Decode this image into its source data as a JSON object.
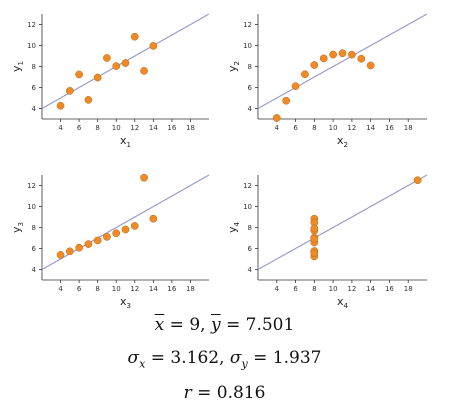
{
  "colors": {
    "point": "#f08a24",
    "point_stroke": "#b8651a",
    "line": "#9a9ccc",
    "axis": "#333333"
  },
  "chart_data": [
    {
      "type": "scatter",
      "ylabel": "y1",
      "ylabel_base": "y",
      "ylabel_sub": "1",
      "xlabel": "x1",
      "xlabel_base": "x",
      "xlabel_sub": "1",
      "xlim": [
        2,
        20
      ],
      "ylim": [
        3,
        13
      ],
      "xticks": [
        4,
        6,
        8,
        10,
        12,
        14,
        16,
        18
      ],
      "yticks": [
        4,
        6,
        8,
        10,
        12
      ],
      "fit_line": {
        "intercept": 3.0,
        "slope": 0.5
      },
      "x": [
        10,
        8,
        13,
        9,
        11,
        14,
        6,
        4,
        12,
        7,
        5
      ],
      "y": [
        8.04,
        6.95,
        7.58,
        8.81,
        8.33,
        9.96,
        7.24,
        4.26,
        10.84,
        4.82,
        5.68
      ]
    },
    {
      "type": "scatter",
      "ylabel": "y2",
      "ylabel_base": "y",
      "ylabel_sub": "2",
      "xlabel": "x2",
      "xlabel_base": "x",
      "xlabel_sub": "2",
      "xlim": [
        2,
        20
      ],
      "ylim": [
        3,
        13
      ],
      "xticks": [
        4,
        6,
        8,
        10,
        12,
        14,
        16,
        18
      ],
      "yticks": [
        4,
        6,
        8,
        10,
        12
      ],
      "fit_line": {
        "intercept": 3.0,
        "slope": 0.5
      },
      "x": [
        10,
        8,
        13,
        9,
        11,
        14,
        6,
        4,
        12,
        7,
        5
      ],
      "y": [
        9.14,
        8.14,
        8.74,
        8.77,
        9.26,
        8.1,
        6.13,
        3.1,
        9.13,
        7.26,
        4.74
      ]
    },
    {
      "type": "scatter",
      "ylabel": "y3",
      "ylabel_base": "y",
      "ylabel_sub": "3",
      "xlabel": "x3",
      "xlabel_base": "x",
      "xlabel_sub": "3",
      "xlim": [
        2,
        20
      ],
      "ylim": [
        3,
        13
      ],
      "xticks": [
        4,
        6,
        8,
        10,
        12,
        14,
        16,
        18
      ],
      "yticks": [
        4,
        6,
        8,
        10,
        12
      ],
      "fit_line": {
        "intercept": 3.0,
        "slope": 0.5
      },
      "x": [
        10,
        8,
        13,
        9,
        11,
        14,
        6,
        4,
        12,
        7,
        5
      ],
      "y": [
        7.46,
        6.77,
        12.74,
        7.11,
        7.81,
        8.84,
        6.08,
        5.39,
        8.15,
        6.42,
        5.73
      ]
    },
    {
      "type": "scatter",
      "ylabel": "y4",
      "ylabel_base": "y",
      "ylabel_sub": "4",
      "xlabel": "x4",
      "xlabel_base": "x",
      "xlabel_sub": "4",
      "xlim": [
        2,
        20
      ],
      "ylim": [
        3,
        13
      ],
      "xticks": [
        4,
        6,
        8,
        10,
        12,
        14,
        16,
        18
      ],
      "yticks": [
        4,
        6,
        8,
        10,
        12
      ],
      "fit_line": {
        "intercept": 3.0,
        "slope": 0.5
      },
      "x": [
        8,
        8,
        8,
        8,
        8,
        8,
        8,
        19,
        8,
        8,
        8
      ],
      "y": [
        6.58,
        5.76,
        7.71,
        8.84,
        8.47,
        7.04,
        5.25,
        12.5,
        5.56,
        7.91,
        6.89
      ]
    }
  ],
  "stats": {
    "mean_line": {
      "xbar_sym": "x",
      "ybar_sym": "y",
      "xbar_val": "9",
      "ybar_val": "7.501"
    },
    "sigma_line": {
      "sym": "σ",
      "x_sub": "x",
      "y_sub": "y",
      "x_val": "3.162",
      "y_val": "1.937"
    },
    "r_line": {
      "sym": "r",
      "val": "0.816"
    }
  }
}
